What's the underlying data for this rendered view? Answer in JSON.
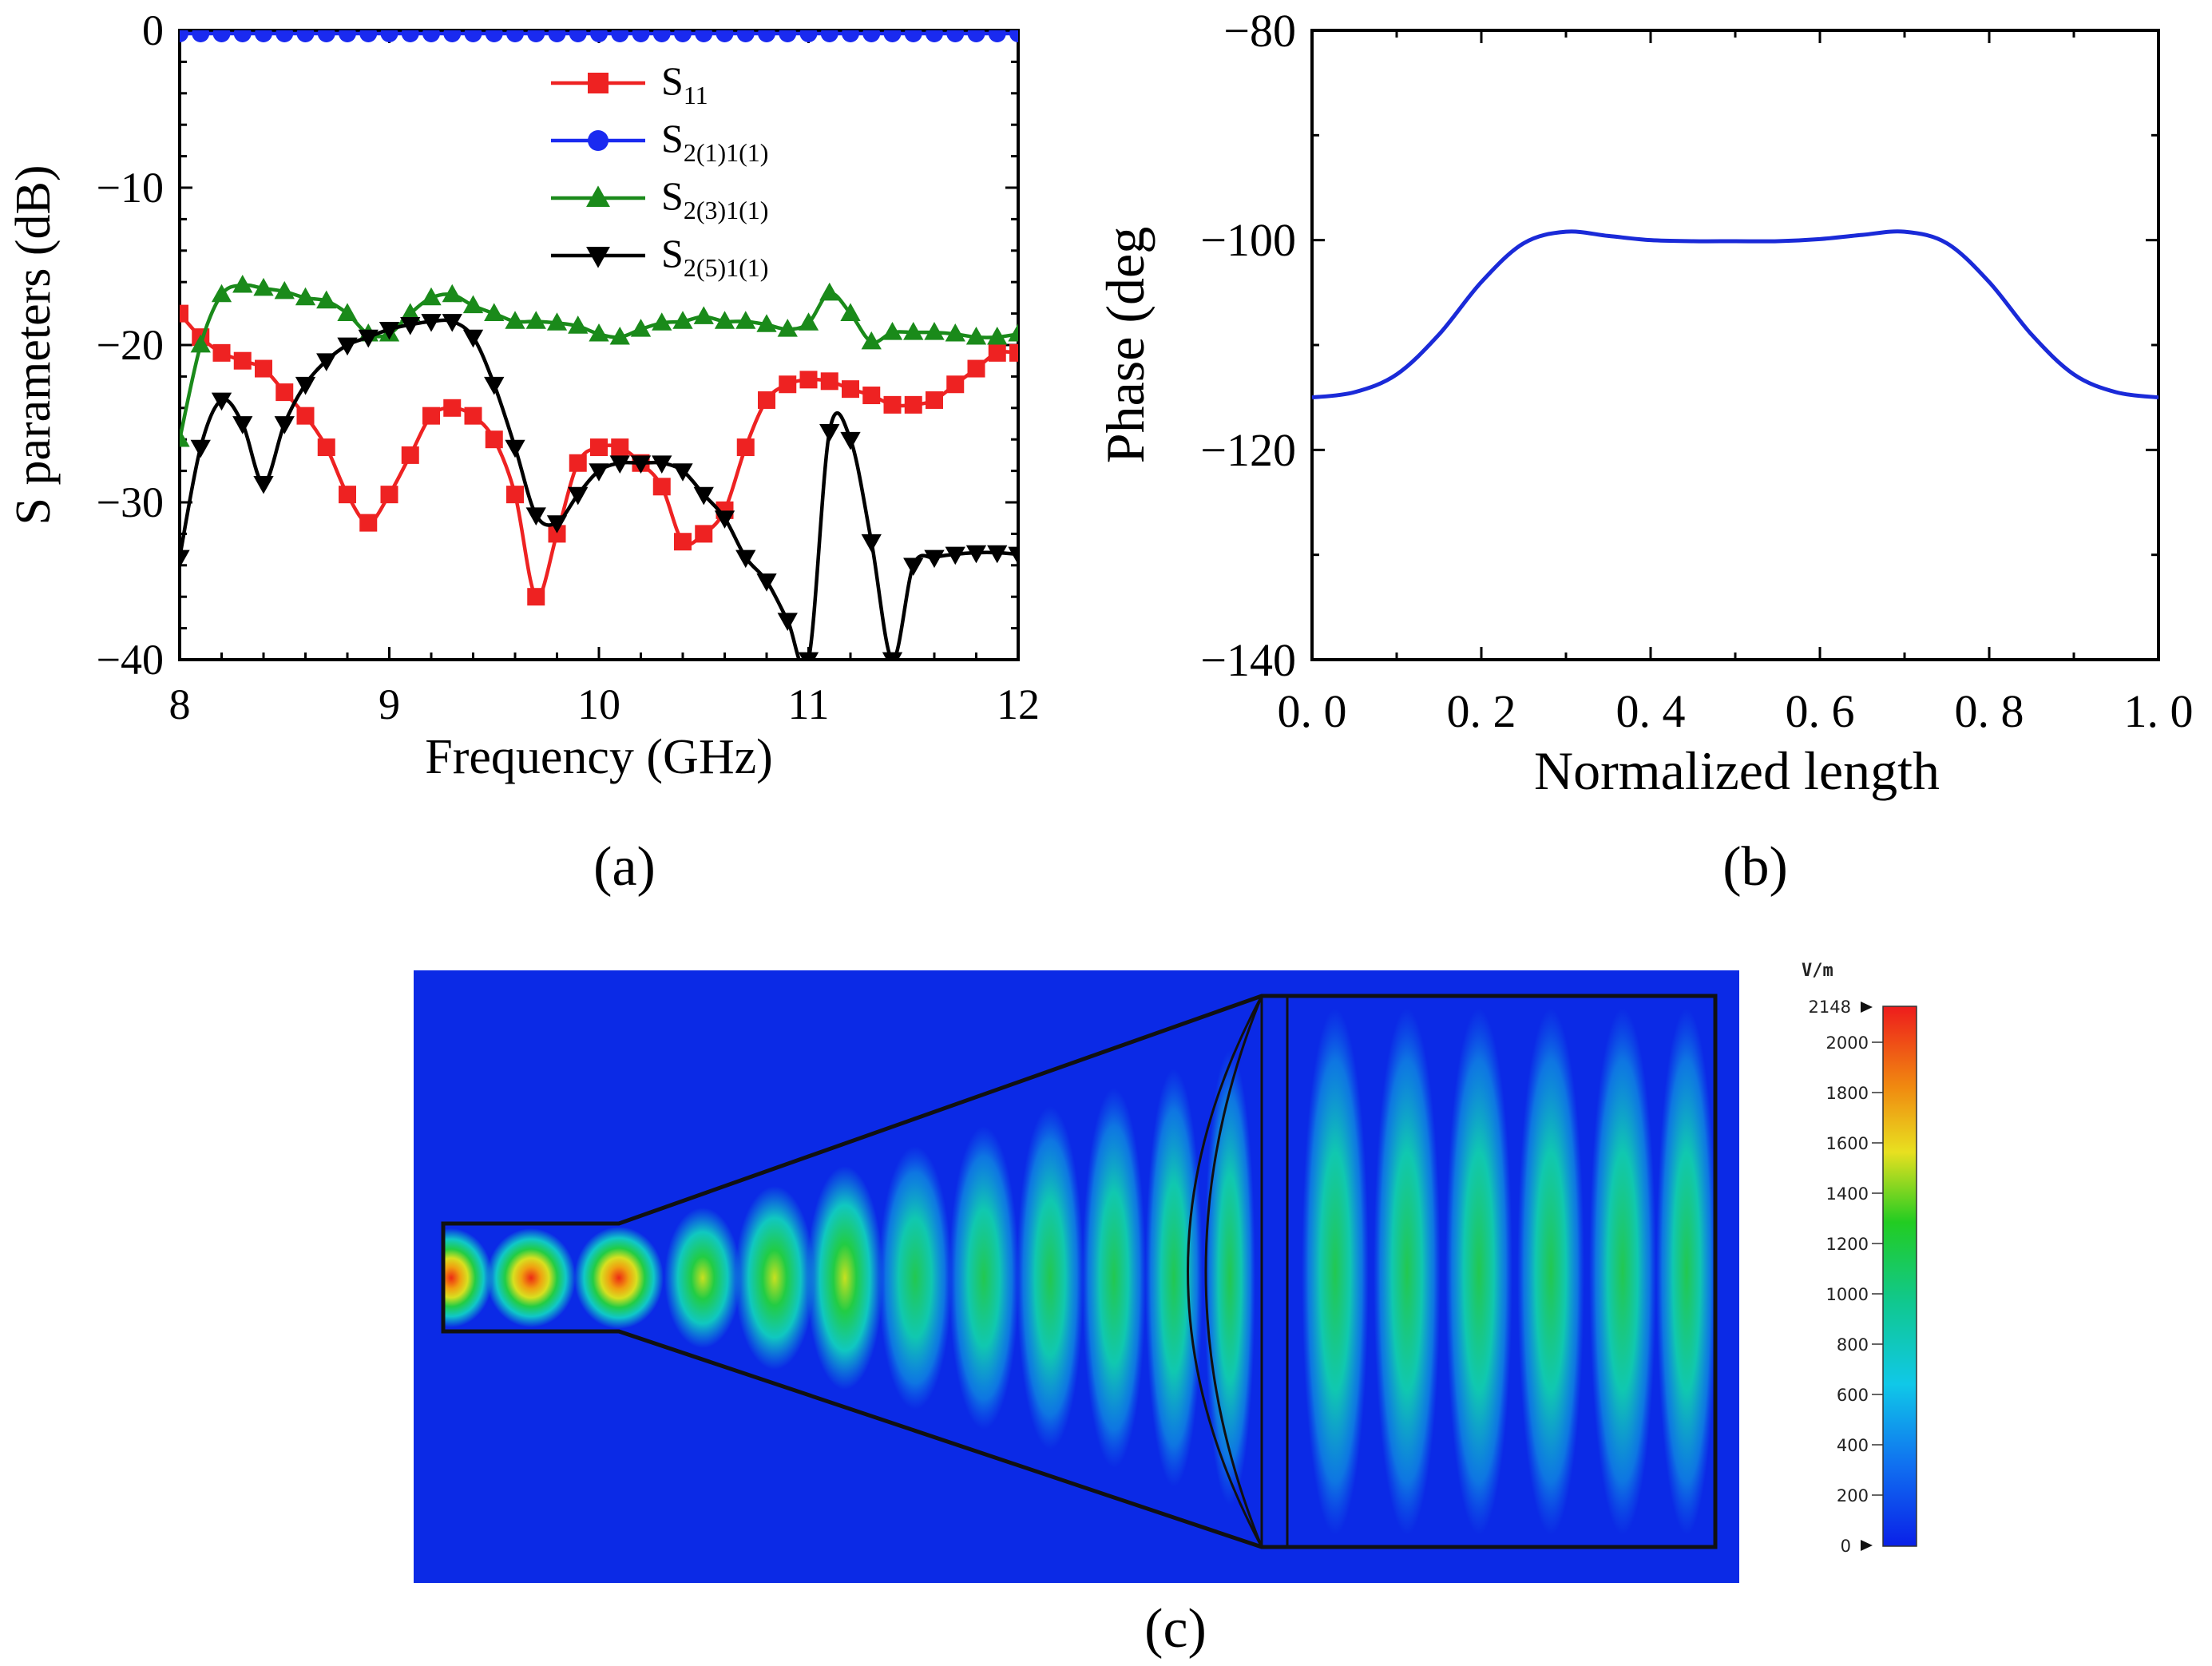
{
  "colors": {
    "s11": "#ee2222",
    "s21_1": "#1a2af0",
    "s21_3": "#1a8a1a",
    "s21_5": "#000000",
    "phase": "#1a2ad8",
    "field_background": "#0b2ae6"
  },
  "chart_data": [
    {
      "id": "a",
      "panel_label": "(a)",
      "type": "line",
      "title": "",
      "xlabel": "Frequency (GHz)",
      "ylabel": "S parameters (dB)",
      "xlim": [
        8,
        12
      ],
      "ylim": [
        -40,
        0
      ],
      "xticks": [
        "8",
        "9",
        "10",
        "11",
        "12"
      ],
      "yticks": [
        "0",
        "−10",
        "−20",
        "−30",
        "−40"
      ],
      "legend_position": "top-center",
      "series": [
        {
          "name": "S11",
          "base": "S",
          "sub": "11",
          "marker": "square",
          "color": "#ee2222",
          "x": [
            8.0,
            8.1,
            8.2,
            8.3,
            8.4,
            8.5,
            8.6,
            8.7,
            8.8,
            8.9,
            9.0,
            9.1,
            9.2,
            9.3,
            9.4,
            9.5,
            9.6,
            9.7,
            9.8,
            9.9,
            10.0,
            10.1,
            10.2,
            10.3,
            10.4,
            10.5,
            10.6,
            10.7,
            10.8,
            10.9,
            11.0,
            11.1,
            11.2,
            11.3,
            11.4,
            11.5,
            11.6,
            11.7,
            11.8,
            11.9,
            12.0
          ],
          "y": [
            -18,
            -19.5,
            -20.5,
            -21,
            -21.5,
            -23,
            -24.5,
            -26.5,
            -29.5,
            -31.3,
            -29.5,
            -27,
            -24.5,
            -24,
            -24.5,
            -26,
            -29.5,
            -36,
            -32,
            -27.5,
            -26.5,
            -26.5,
            -27.5,
            -29,
            -32.5,
            -32,
            -30.5,
            -26.5,
            -23.5,
            -22.5,
            -22.2,
            -22.3,
            -22.8,
            -23.2,
            -23.8,
            -23.8,
            -23.5,
            -22.5,
            -21.5,
            -20.5,
            -20.5
          ]
        },
        {
          "name": "S2(1)1(1)",
          "base": "S",
          "sub": "2(1)1(1)",
          "marker": "circle",
          "color": "#1a2af0",
          "x": [
            8.0,
            8.1,
            8.2,
            8.3,
            8.4,
            8.5,
            8.6,
            8.7,
            8.8,
            8.9,
            9.0,
            9.1,
            9.2,
            9.3,
            9.4,
            9.5,
            9.6,
            9.7,
            9.8,
            9.9,
            10.0,
            10.1,
            10.2,
            10.3,
            10.4,
            10.5,
            10.6,
            10.7,
            10.8,
            10.9,
            11.0,
            11.1,
            11.2,
            11.3,
            11.4,
            11.5,
            11.6,
            11.7,
            11.8,
            11.9,
            12.0
          ],
          "y": [
            -0.2,
            -0.2,
            -0.2,
            -0.2,
            -0.2,
            -0.2,
            -0.2,
            -0.2,
            -0.2,
            -0.2,
            -0.2,
            -0.2,
            -0.2,
            -0.2,
            -0.2,
            -0.2,
            -0.2,
            -0.2,
            -0.2,
            -0.2,
            -0.2,
            -0.2,
            -0.2,
            -0.2,
            -0.2,
            -0.2,
            -0.2,
            -0.2,
            -0.2,
            -0.2,
            -0.2,
            -0.2,
            -0.2,
            -0.2,
            -0.2,
            -0.2,
            -0.2,
            -0.2,
            -0.2,
            -0.2,
            -0.2
          ]
        },
        {
          "name": "S2(3)1(1)",
          "base": "S",
          "sub": "2(3)1(1)",
          "marker": "triangle-up",
          "color": "#1a8a1a",
          "x": [
            8.0,
            8.1,
            8.2,
            8.3,
            8.4,
            8.5,
            8.6,
            8.7,
            8.8,
            8.9,
            9.0,
            9.1,
            9.2,
            9.3,
            9.4,
            9.5,
            9.6,
            9.7,
            9.8,
            9.9,
            10.0,
            10.1,
            10.2,
            10.3,
            10.4,
            10.5,
            10.6,
            10.7,
            10.8,
            10.9,
            11.0,
            11.1,
            11.2,
            11.3,
            11.4,
            11.5,
            11.6,
            11.7,
            11.8,
            11.9,
            12.0
          ],
          "y": [
            -26,
            -20,
            -16.8,
            -16.2,
            -16.4,
            -16.6,
            -17,
            -17.2,
            -18,
            -19.3,
            -19.3,
            -18,
            -17,
            -16.8,
            -17.5,
            -18,
            -18.5,
            -18.5,
            -18.6,
            -18.8,
            -19.3,
            -19.5,
            -19,
            -18.6,
            -18.5,
            -18.2,
            -18.5,
            -18.5,
            -18.7,
            -19,
            -18.6,
            -16.7,
            -18,
            -19.8,
            -19.2,
            -19.2,
            -19.2,
            -19.3,
            -19.5,
            -19.5,
            -19.3
          ]
        },
        {
          "name": "S2(5)1(1)",
          "base": "S",
          "sub": "2(5)1(1)",
          "marker": "triangle-down",
          "color": "#000000",
          "x": [
            8.0,
            8.1,
            8.2,
            8.3,
            8.4,
            8.5,
            8.6,
            8.7,
            8.8,
            8.9,
            9.0,
            9.1,
            9.2,
            9.3,
            9.4,
            9.5,
            9.6,
            9.7,
            9.8,
            9.9,
            10.0,
            10.1,
            10.2,
            10.3,
            10.4,
            10.5,
            10.6,
            10.7,
            10.8,
            10.9,
            11.0,
            11.1,
            11.2,
            11.3,
            11.4,
            11.5,
            11.6,
            11.7,
            11.8,
            11.9,
            12.0
          ],
          "y": [
            -33.5,
            -26.5,
            -23.5,
            -25,
            -28.8,
            -25,
            -22.5,
            -21,
            -20,
            -19.5,
            -19,
            -18.7,
            -18.5,
            -18.5,
            -19.5,
            -22.5,
            -26.5,
            -30.8,
            -31.3,
            -29.5,
            -28,
            -27.5,
            -27.5,
            -27.5,
            -28,
            -29.5,
            -31,
            -33.5,
            -35,
            -37.5,
            -40,
            -25.5,
            -26,
            -32.5,
            -40,
            -34,
            -33.5,
            -33.3,
            -33.2,
            -33.2,
            -33.3
          ]
        }
      ],
      "legend": [
        {
          "base": "S",
          "sub": "11"
        },
        {
          "base": "S",
          "sub": "2(1)1(1)"
        },
        {
          "base": "S",
          "sub": "2(3)1(1)"
        },
        {
          "base": "S",
          "sub": "2(5)1(1)"
        }
      ]
    },
    {
      "id": "b",
      "panel_label": "(b)",
      "type": "line",
      "title": "",
      "xlabel": "Normalized length",
      "ylabel": "Phase (deg",
      "xlim": [
        0.0,
        1.0
      ],
      "ylim": [
        -140,
        -80
      ],
      "xticks": [
        "0. 0",
        "0. 2",
        "0. 4",
        "0. 6",
        "0. 8",
        "1. 0"
      ],
      "yticks": [
        "−80",
        "−100",
        "−120",
        "−140"
      ],
      "series": [
        {
          "name": "Phase",
          "color": "#1a2ad8",
          "x": [
            0.0,
            0.05,
            0.1,
            0.15,
            0.2,
            0.25,
            0.3,
            0.35,
            0.4,
            0.45,
            0.5,
            0.55,
            0.6,
            0.65,
            0.7,
            0.75,
            0.8,
            0.85,
            0.9,
            0.95,
            1.0
          ],
          "y": [
            -115,
            -114.5,
            -112.8,
            -109,
            -104,
            -100.3,
            -99.2,
            -99.6,
            -100,
            -100.1,
            -100.1,
            -100.1,
            -99.9,
            -99.5,
            -99.2,
            -100.3,
            -104,
            -109,
            -112.8,
            -114.5,
            -115
          ]
        }
      ]
    }
  ],
  "panel_c": {
    "panel_label": "(c)",
    "colorbar": {
      "unit": "V/m",
      "max_label": "2148",
      "min_label": "0",
      "ticks": [
        "2000",
        "1800",
        "1600",
        "1400",
        "1200",
        "1000",
        "800",
        "600",
        "400",
        "200"
      ]
    }
  }
}
